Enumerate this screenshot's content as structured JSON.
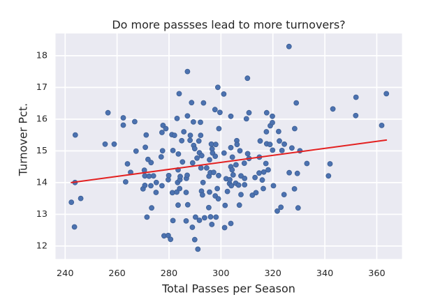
{
  "chart_data": {
    "type": "scatter",
    "title": "Do more passses lead to more turnovers?",
    "xlabel": "Total Passes per Season",
    "ylabel": "Turnover Pct.",
    "x_ticks": [
      240,
      260,
      280,
      300,
      320,
      340,
      360
    ],
    "y_ticks": [
      12,
      13,
      14,
      15,
      16,
      17,
      18
    ],
    "xlim": [
      236.3,
      369.7
    ],
    "ylim": [
      11.59,
      18.7
    ],
    "grid": "on",
    "legend": "none",
    "series": [
      {
        "name": "teams",
        "marker": "circle",
        "color": "#4c72b0",
        "points": [
          [
            242.4,
            13.38
          ],
          [
            243.6,
            12.6
          ],
          [
            243.8,
            14.0
          ],
          [
            243.9,
            15.5
          ],
          [
            246.0,
            13.5
          ],
          [
            255.4,
            15.21
          ],
          [
            256.5,
            16.2
          ],
          [
            258.9,
            15.21
          ],
          [
            262.4,
            16.04
          ],
          [
            262.4,
            15.81
          ],
          [
            263.3,
            14.02
          ],
          [
            264.0,
            14.59
          ],
          [
            265.2,
            14.32
          ],
          [
            266.8,
            15.92
          ],
          [
            267.3,
            14.99
          ],
          [
            270.0,
            13.8
          ],
          [
            270.5,
            14.39
          ],
          [
            270.7,
            13.91
          ],
          [
            270.7,
            14.21
          ],
          [
            270.9,
            15.11
          ],
          [
            271.2,
            15.5
          ],
          [
            271.5,
            12.91
          ],
          [
            271.9,
            14.73
          ],
          [
            272.3,
            14.2
          ],
          [
            273.0,
            13.9
          ],
          [
            273.1,
            14.63
          ],
          [
            273.3,
            13.2
          ],
          [
            274.0,
            14.21
          ],
          [
            275.0,
            13.69
          ],
          [
            275.1,
            14.0
          ],
          [
            277.0,
            14.81
          ],
          [
            277.3,
            15.58
          ],
          [
            277.3,
            13.9
          ],
          [
            277.5,
            15.0
          ],
          [
            277.7,
            15.8
          ],
          [
            278.1,
            12.32
          ],
          [
            278.8,
            15.7
          ],
          [
            279.7,
            12.33
          ],
          [
            279.7,
            14.09
          ],
          [
            279.9,
            14.22
          ],
          [
            280.6,
            12.21
          ],
          [
            281.1,
            15.51
          ],
          [
            281.3,
            13.68
          ],
          [
            281.5,
            12.8
          ],
          [
            281.5,
            15.01
          ],
          [
            282.1,
            15.49
          ],
          [
            283.0,
            13.7
          ],
          [
            283.1,
            16.02
          ],
          [
            283.3,
            14.0
          ],
          [
            283.5,
            14.4
          ],
          [
            283.5,
            13.29
          ],
          [
            283.6,
            14.9
          ],
          [
            283.9,
            16.8
          ],
          [
            284.1,
            13.81
          ],
          [
            284.2,
            14.09
          ],
          [
            284.3,
            14.19
          ],
          [
            284.9,
            15.32
          ],
          [
            285.2,
            14.65
          ],
          [
            285.7,
            15.6
          ],
          [
            286.6,
            13.69
          ],
          [
            286.6,
            12.79
          ],
          [
            286.7,
            14.13
          ],
          [
            287.0,
            14.23
          ],
          [
            287.1,
            17.5
          ],
          [
            287.1,
            16.1
          ],
          [
            287.2,
            13.3
          ],
          [
            288.1,
            15.33
          ],
          [
            288.2,
            15.49
          ],
          [
            288.7,
            16.52
          ],
          [
            289.0,
            12.59
          ],
          [
            289.1,
            14.62
          ],
          [
            289.4,
            15.91
          ],
          [
            289.5,
            15.17
          ],
          [
            289.9,
            12.2
          ],
          [
            289.9,
            15.07
          ],
          [
            290.2,
            12.91
          ],
          [
            290.8,
            14.77
          ],
          [
            291.1,
            11.9
          ],
          [
            291.5,
            15.31
          ],
          [
            291.7,
            12.81
          ],
          [
            291.7,
            14.94
          ],
          [
            292.1,
            15.9
          ],
          [
            292.2,
            15.49
          ],
          [
            292.3,
            14.46
          ],
          [
            292.5,
            13.73
          ],
          [
            292.6,
            14.85
          ],
          [
            292.9,
            13.61
          ],
          [
            293.1,
            14.0
          ],
          [
            293.3,
            16.51
          ],
          [
            293.7,
            12.89
          ],
          [
            294.5,
            14.46
          ],
          [
            295.3,
            13.21
          ],
          [
            295.4,
            14.2
          ],
          [
            295.6,
            14.72
          ],
          [
            295.6,
            13.7
          ],
          [
            295.9,
            14.31
          ],
          [
            296.0,
            12.92
          ],
          [
            296.3,
            15.21
          ],
          [
            296.5,
            12.68
          ],
          [
            296.6,
            15.06
          ],
          [
            296.8,
            14.93
          ],
          [
            297.2,
            14.32
          ],
          [
            297.7,
            16.3
          ],
          [
            297.8,
            14.83
          ],
          [
            297.8,
            13.58
          ],
          [
            298.0,
            15.2
          ],
          [
            298.1,
            12.91
          ],
          [
            298.6,
            13.81
          ],
          [
            298.8,
            17.0
          ],
          [
            299.0,
            13.49
          ],
          [
            299.1,
            14.22
          ],
          [
            299.2,
            15.7
          ],
          [
            299.6,
            16.21
          ],
          [
            301.1,
            16.79
          ],
          [
            301.2,
            14.93
          ],
          [
            301.4,
            12.58
          ],
          [
            301.6,
            13.28
          ],
          [
            302.0,
            14.12
          ],
          [
            302.5,
            13.72
          ],
          [
            303.3,
            13.97
          ],
          [
            303.4,
            14.09
          ],
          [
            303.8,
            14.5
          ],
          [
            303.8,
            16.09
          ],
          [
            303.8,
            12.71
          ],
          [
            303.8,
            15.1
          ],
          [
            304.0,
            13.9
          ],
          [
            304.3,
            14.4
          ],
          [
            304.4,
            14.8
          ],
          [
            304.7,
            14.24
          ],
          [
            305.7,
            13.98
          ],
          [
            305.8,
            14.56
          ],
          [
            306.1,
            15.32
          ],
          [
            306.2,
            15.2
          ],
          [
            306.8,
            13.92
          ],
          [
            307.1,
            13.29
          ],
          [
            307.3,
            15.0
          ],
          [
            307.7,
            13.62
          ],
          [
            307.7,
            14.21
          ],
          [
            309.0,
            14.61
          ],
          [
            309.1,
            14.13
          ],
          [
            309.1,
            13.93
          ],
          [
            309.8,
            16.01
          ],
          [
            310.2,
            17.29
          ],
          [
            310.3,
            14.91
          ],
          [
            310.8,
            16.2
          ],
          [
            310.8,
            14.76
          ],
          [
            312.1,
            13.6
          ],
          [
            313.1,
            14.16
          ],
          [
            313.5,
            13.68
          ],
          [
            314.7,
            14.3
          ],
          [
            314.8,
            14.8
          ],
          [
            315.1,
            15.31
          ],
          [
            315.9,
            14.08
          ],
          [
            316.3,
            13.81
          ],
          [
            316.5,
            14.33
          ],
          [
            317.3,
            14.6
          ],
          [
            317.5,
            15.6
          ],
          [
            317.6,
            16.2
          ],
          [
            317.6,
            15.22
          ],
          [
            318.2,
            14.4
          ],
          [
            318.9,
            15.2
          ],
          [
            319.0,
            15.79
          ],
          [
            319.8,
            15.89
          ],
          [
            319.8,
            16.09
          ],
          [
            319.9,
            15.02
          ],
          [
            320.2,
            13.9
          ],
          [
            321.7,
            13.1
          ],
          [
            322.2,
            15.61
          ],
          [
            322.5,
            15.31
          ],
          [
            323.1,
            13.22
          ],
          [
            323.5,
            15.01
          ],
          [
            324.3,
            13.62
          ],
          [
            324.4,
            15.21
          ],
          [
            326.2,
            18.29
          ],
          [
            326.3,
            14.31
          ],
          [
            327.3,
            15.09
          ],
          [
            328.3,
            13.8
          ],
          [
            328.4,
            15.7
          ],
          [
            329.0,
            16.51
          ],
          [
            329.4,
            14.29
          ],
          [
            329.7,
            13.2
          ],
          [
            330.4,
            15.0
          ],
          [
            333.1,
            14.6
          ],
          [
            341.4,
            14.21
          ],
          [
            342.0,
            14.59
          ],
          [
            343.1,
            16.32
          ],
          [
            351.9,
            16.11
          ],
          [
            352.0,
            16.69
          ],
          [
            361.9,
            15.8
          ],
          [
            363.7,
            16.8
          ]
        ]
      }
    ],
    "regression_line": {
      "color": "#e32020",
      "x1": 242.4,
      "y1": 14.0,
      "x2": 363.7,
      "y2": 15.34
    },
    "colors": {
      "plot_background": "#eaeaf2",
      "figure_background": "#ffffff",
      "gridline": "#ffffff",
      "text": "#262626",
      "marker": "#4c72b0",
      "line": "#e32020"
    }
  }
}
